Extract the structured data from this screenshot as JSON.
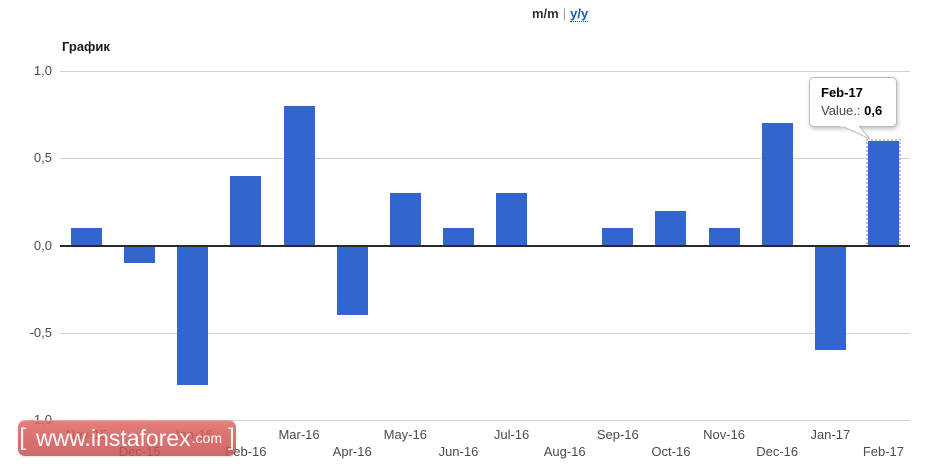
{
  "header": {
    "mm_label": "m/m",
    "separator": "|",
    "yy_label": "y/y"
  },
  "chart": {
    "title": "График"
  },
  "chart_data": {
    "type": "bar",
    "title": "График",
    "categories": [
      "Nov-15",
      "Dec-15",
      "Jan-16",
      "Feb-16",
      "Mar-16",
      "Apr-16",
      "May-16",
      "Jun-16",
      "Jul-16",
      "Aug-16",
      "Sep-16",
      "Oct-16",
      "Nov-16",
      "Dec-16",
      "Jan-17",
      "Feb-17"
    ],
    "values": [
      0.1,
      -0.1,
      -0.8,
      0.4,
      0.8,
      -0.4,
      0.3,
      0.1,
      0.3,
      0.0,
      0.1,
      0.2,
      0.1,
      0.7,
      -0.6,
      0.6
    ],
    "xlabel": "",
    "ylabel": "",
    "ylim": [
      -1.0,
      1.0
    ],
    "yticks": [
      1.0,
      0.5,
      0.0,
      -0.5,
      -1.0
    ],
    "ytick_labels": [
      "1,0",
      "0,5",
      "0,0",
      "-0,5",
      "-1,0"
    ],
    "grid": true,
    "legend": "none",
    "bar_color": "#3366cc",
    "highlighted_index": 15,
    "x_label_rows": "alternating"
  },
  "tooltip": {
    "title": "Feb-17",
    "value_label": "Value.:",
    "value": "0,6"
  },
  "watermark": {
    "bracket_left": "[",
    "text_main": "www.instaforex",
    "text_suffix": ".com",
    "bracket_right": "]"
  }
}
